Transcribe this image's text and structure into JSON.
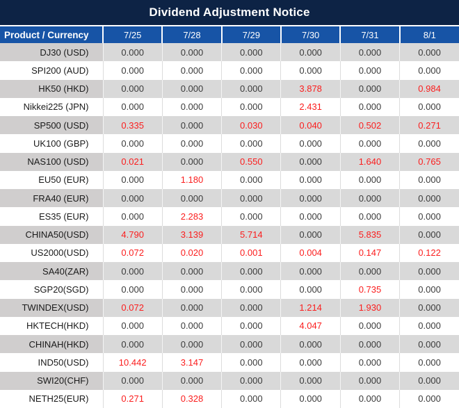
{
  "title": "Dividend Adjustment Notice",
  "colors": {
    "title_bg": "#0d2345",
    "header_bg": "#1754a6",
    "row_gray": "#d9d9d9",
    "label_gray": "#d0cece",
    "value_red": "#fb1d1d",
    "value_normal": "#3a3a3a"
  },
  "table": {
    "columns": [
      "Product / Currency",
      "7/25",
      "7/28",
      "7/29",
      "7/30",
      "7/31",
      "8/1"
    ],
    "rows": [
      {
        "product": "DJ30 (USD)",
        "values": [
          "0.000",
          "0.000",
          "0.000",
          "0.000",
          "0.000",
          "0.000"
        ]
      },
      {
        "product": "SPI200 (AUD)",
        "values": [
          "0.000",
          "0.000",
          "0.000",
          "0.000",
          "0.000",
          "0.000"
        ]
      },
      {
        "product": "HK50 (HKD)",
        "values": [
          "0.000",
          "0.000",
          "0.000",
          "3.878",
          "0.000",
          "0.984"
        ]
      },
      {
        "product": "Nikkei225 (JPN)",
        "values": [
          "0.000",
          "0.000",
          "0.000",
          "2.431",
          "0.000",
          "0.000"
        ]
      },
      {
        "product": "SP500 (USD)",
        "values": [
          "0.335",
          "0.000",
          "0.030",
          "0.040",
          "0.502",
          "0.271"
        ]
      },
      {
        "product": "UK100 (GBP)",
        "values": [
          "0.000",
          "0.000",
          "0.000",
          "0.000",
          "0.000",
          "0.000"
        ]
      },
      {
        "product": "NAS100 (USD)",
        "values": [
          "0.021",
          "0.000",
          "0.550",
          "0.000",
          "1.640",
          "0.765"
        ]
      },
      {
        "product": "EU50 (EUR)",
        "values": [
          "0.000",
          "1.180",
          "0.000",
          "0.000",
          "0.000",
          "0.000"
        ]
      },
      {
        "product": "FRA40 (EUR)",
        "values": [
          "0.000",
          "0.000",
          "0.000",
          "0.000",
          "0.000",
          "0.000"
        ]
      },
      {
        "product": "ES35 (EUR)",
        "values": [
          "0.000",
          "2.283",
          "0.000",
          "0.000",
          "0.000",
          "0.000"
        ]
      },
      {
        "product": "CHINA50(USD)",
        "values": [
          "4.790",
          "3.139",
          "5.714",
          "0.000",
          "5.835",
          "0.000"
        ]
      },
      {
        "product": "US2000(USD)",
        "values": [
          "0.072",
          "0.020",
          "0.001",
          "0.004",
          "0.147",
          "0.122"
        ]
      },
      {
        "product": "SA40(ZAR)",
        "values": [
          "0.000",
          "0.000",
          "0.000",
          "0.000",
          "0.000",
          "0.000"
        ]
      },
      {
        "product": "SGP20(SGD)",
        "values": [
          "0.000",
          "0.000",
          "0.000",
          "0.000",
          "0.735",
          "0.000"
        ]
      },
      {
        "product": "TWINDEX(USD)",
        "values": [
          "0.072",
          "0.000",
          "0.000",
          "1.214",
          "1.930",
          "0.000"
        ]
      },
      {
        "product": "HKTECH(HKD)",
        "values": [
          "0.000",
          "0.000",
          "0.000",
          "4.047",
          "0.000",
          "0.000"
        ]
      },
      {
        "product": "CHINAH(HKD)",
        "values": [
          "0.000",
          "0.000",
          "0.000",
          "0.000",
          "0.000",
          "0.000"
        ]
      },
      {
        "product": "IND50(USD)",
        "values": [
          "10.442",
          "3.147",
          "0.000",
          "0.000",
          "0.000",
          "0.000"
        ]
      },
      {
        "product": "SWI20(CHF)",
        "values": [
          "0.000",
          "0.000",
          "0.000",
          "0.000",
          "0.000",
          "0.000"
        ]
      },
      {
        "product": "NETH25(EUR)",
        "values": [
          "0.271",
          "0.328",
          "0.000",
          "0.000",
          "0.000",
          "0.000"
        ]
      }
    ]
  }
}
